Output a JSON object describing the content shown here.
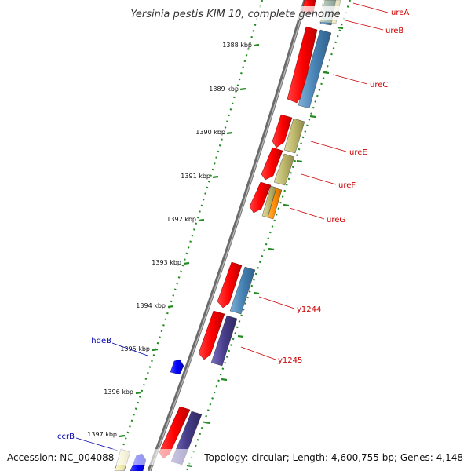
{
  "title": "Yersinia pestis KIM 10, complete genome",
  "footer": {
    "accession": "Accession: NC_004088",
    "topology": "Topology: circular; Length: 4,600,755 bp; Genes: 4,148"
  },
  "ticks": [
    "1388 kbp",
    "1389 kbp",
    "1390 kbp",
    "1391 kbp",
    "1392 kbp",
    "1393 kbp",
    "1394 kbp",
    "1395 kbp",
    "1396 kbp",
    "1397 kbp"
  ],
  "genes": [
    {
      "label": "ureA",
      "color": "#cc0000"
    },
    {
      "label": "ureB",
      "color": "#cc0000"
    },
    {
      "label": "ureC",
      "color": "#cc0000"
    },
    {
      "label": "ureE",
      "color": "#cc0000"
    },
    {
      "label": "ureF",
      "color": "#cc0000"
    },
    {
      "label": "ureG",
      "color": "#cc0000"
    },
    {
      "label": "y1244",
      "color": "#cc0000"
    },
    {
      "label": "y1245",
      "color": "#cc0000"
    },
    {
      "label": "hdeB",
      "color": "#0000aa"
    },
    {
      "label": "ccrB",
      "color": "#0000aa"
    }
  ],
  "colors": {
    "cds": "#ff0000",
    "steelblue": "#4682b4",
    "khaki": "#bdb76b",
    "orange": "#ff8c00",
    "darkslate": "#483d8b",
    "blue": "#0000ff",
    "paleyellow": "#eee8aa",
    "tick": "#228b22",
    "backbone": "#777777"
  }
}
